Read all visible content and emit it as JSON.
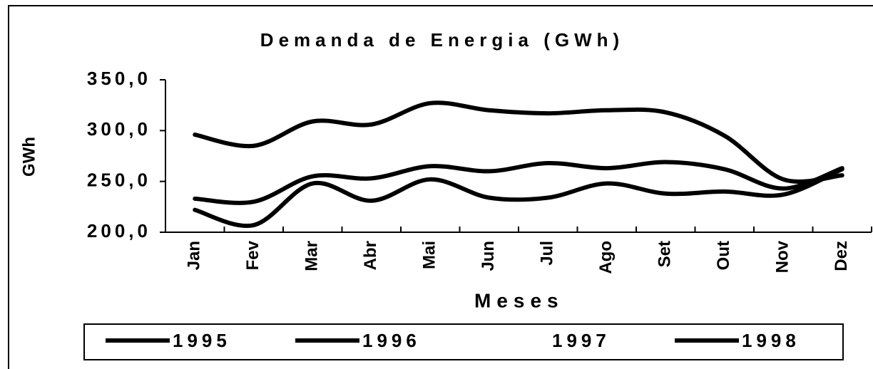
{
  "chart_data": {
    "type": "line",
    "title": "Demanda de Energia (GWh)",
    "x_label": "Meses",
    "y_label": "GWh",
    "categories": [
      "Jan",
      "Fev",
      "Mar",
      "Abr",
      "Mai",
      "Jun",
      "Jul",
      "Ago",
      "Set",
      "Out",
      "Nov",
      "Dez"
    ],
    "series": [
      {
        "name": "1995",
        "color": "#000000",
        "values": [
          222,
          207,
          248,
          231,
          252,
          234,
          234,
          248,
          238,
          240,
          237,
          262
        ]
      },
      {
        "name": "1996",
        "color": "#000000",
        "values": [
          233,
          230,
          255,
          253,
          265,
          260,
          268,
          263,
          269,
          262,
          243,
          263
        ]
      },
      {
        "name": "1997",
        "color": "#ffffff",
        "values": [
          null,
          null,
          null,
          null,
          null,
          null,
          null,
          null,
          null,
          null,
          null,
          null
        ]
      },
      {
        "name": "1998",
        "color": "#000000",
        "values": [
          296,
          285,
          309,
          306,
          327,
          320,
          317,
          320,
          318,
          295,
          252,
          256
        ]
      }
    ],
    "ylim": [
      200,
      350
    ],
    "yticks": [
      {
        "value": 200,
        "label": "200,0"
      },
      {
        "value": 250,
        "label": "250,0"
      },
      {
        "value": 300,
        "label": "300,0"
      },
      {
        "value": 350,
        "label": "350,0"
      }
    ],
    "legend": "bottom"
  }
}
